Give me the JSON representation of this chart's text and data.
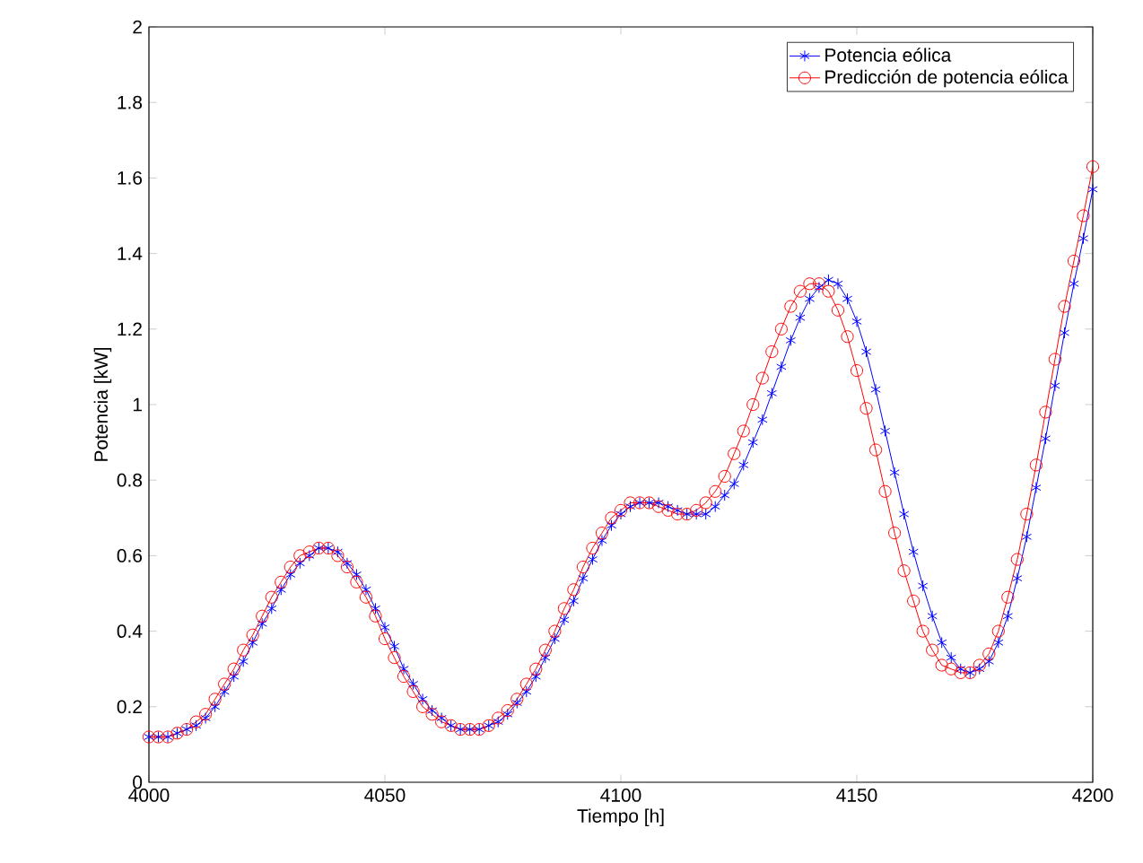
{
  "chart_data": {
    "type": "line",
    "xlabel": "Tiempo [h]",
    "ylabel": "Potencia [kW]",
    "x": [
      4000,
      4002,
      4004,
      4006,
      4008,
      4010,
      4012,
      4014,
      4016,
      4018,
      4020,
      4022,
      4024,
      4026,
      4028,
      4030,
      4032,
      4034,
      4036,
      4038,
      4040,
      4042,
      4044,
      4046,
      4048,
      4050,
      4052,
      4054,
      4056,
      4058,
      4060,
      4062,
      4064,
      4066,
      4068,
      4070,
      4072,
      4074,
      4076,
      4078,
      4080,
      4082,
      4084,
      4086,
      4088,
      4090,
      4092,
      4094,
      4096,
      4098,
      4100,
      4102,
      4104,
      4106,
      4108,
      4110,
      4112,
      4114,
      4116,
      4118,
      4120,
      4122,
      4124,
      4126,
      4128,
      4130,
      4132,
      4134,
      4136,
      4138,
      4140,
      4142,
      4144,
      4146,
      4148,
      4150,
      4152,
      4154,
      4156,
      4158,
      4160,
      4162,
      4164,
      4166,
      4168,
      4170,
      4172,
      4174,
      4176,
      4178,
      4180,
      4182,
      4184,
      4186,
      4188,
      4190,
      4192,
      4194,
      4196,
      4198,
      4200
    ],
    "series": [
      {
        "name": "Potencia eólica",
        "color": "#0000ff",
        "marker": "cross",
        "values": [
          0.12,
          0.12,
          0.12,
          0.13,
          0.14,
          0.15,
          0.17,
          0.2,
          0.24,
          0.28,
          0.32,
          0.37,
          0.42,
          0.46,
          0.51,
          0.55,
          0.58,
          0.6,
          0.62,
          0.62,
          0.61,
          0.58,
          0.55,
          0.51,
          0.46,
          0.41,
          0.36,
          0.3,
          0.26,
          0.22,
          0.19,
          0.17,
          0.15,
          0.14,
          0.14,
          0.14,
          0.15,
          0.16,
          0.18,
          0.21,
          0.24,
          0.28,
          0.33,
          0.38,
          0.43,
          0.48,
          0.54,
          0.59,
          0.64,
          0.68,
          0.71,
          0.73,
          0.74,
          0.74,
          0.74,
          0.73,
          0.72,
          0.71,
          0.71,
          0.71,
          0.73,
          0.76,
          0.79,
          0.84,
          0.9,
          0.96,
          1.03,
          1.1,
          1.17,
          1.23,
          1.28,
          1.31,
          1.33,
          1.32,
          1.28,
          1.22,
          1.14,
          1.04,
          0.93,
          0.82,
          0.71,
          0.61,
          0.52,
          0.44,
          0.37,
          0.33,
          0.3,
          0.29,
          0.3,
          0.32,
          0.37,
          0.44,
          0.54,
          0.65,
          0.78,
          0.91,
          1.05,
          1.19,
          1.32,
          1.44,
          1.57
        ]
      },
      {
        "name": "Predicción de potencia eólica",
        "color": "#ff0000",
        "marker": "circle",
        "values": [
          0.12,
          0.12,
          0.12,
          0.13,
          0.14,
          0.16,
          0.18,
          0.22,
          0.26,
          0.3,
          0.35,
          0.39,
          0.44,
          0.49,
          0.53,
          0.57,
          0.6,
          0.61,
          0.62,
          0.62,
          0.6,
          0.57,
          0.53,
          0.49,
          0.44,
          0.38,
          0.33,
          0.28,
          0.24,
          0.2,
          0.18,
          0.16,
          0.15,
          0.14,
          0.14,
          0.14,
          0.15,
          0.17,
          0.19,
          0.22,
          0.26,
          0.3,
          0.35,
          0.4,
          0.46,
          0.51,
          0.57,
          0.62,
          0.66,
          0.7,
          0.72,
          0.74,
          0.74,
          0.74,
          0.73,
          0.72,
          0.71,
          0.71,
          0.72,
          0.74,
          0.77,
          0.81,
          0.87,
          0.93,
          1.0,
          1.07,
          1.14,
          1.2,
          1.26,
          1.3,
          1.32,
          1.32,
          1.3,
          1.25,
          1.18,
          1.09,
          0.99,
          0.88,
          0.77,
          0.66,
          0.56,
          0.48,
          0.4,
          0.35,
          0.31,
          0.3,
          0.29,
          0.29,
          0.31,
          0.34,
          0.4,
          0.49,
          0.59,
          0.71,
          0.84,
          0.98,
          1.12,
          1.26,
          1.38,
          1.5,
          1.63
        ]
      }
    ],
    "xlim": [
      4000,
      4200
    ],
    "xticks": [
      4000,
      4050,
      4100,
      4150,
      4200
    ],
    "ylim": [
      0,
      2
    ],
    "yticks": [
      0,
      0.2,
      0.4,
      0.6,
      0.8,
      1,
      1.2,
      1.4,
      1.6,
      1.8,
      2
    ],
    "grid": false,
    "legend": "top right",
    "line_style": "solid"
  }
}
